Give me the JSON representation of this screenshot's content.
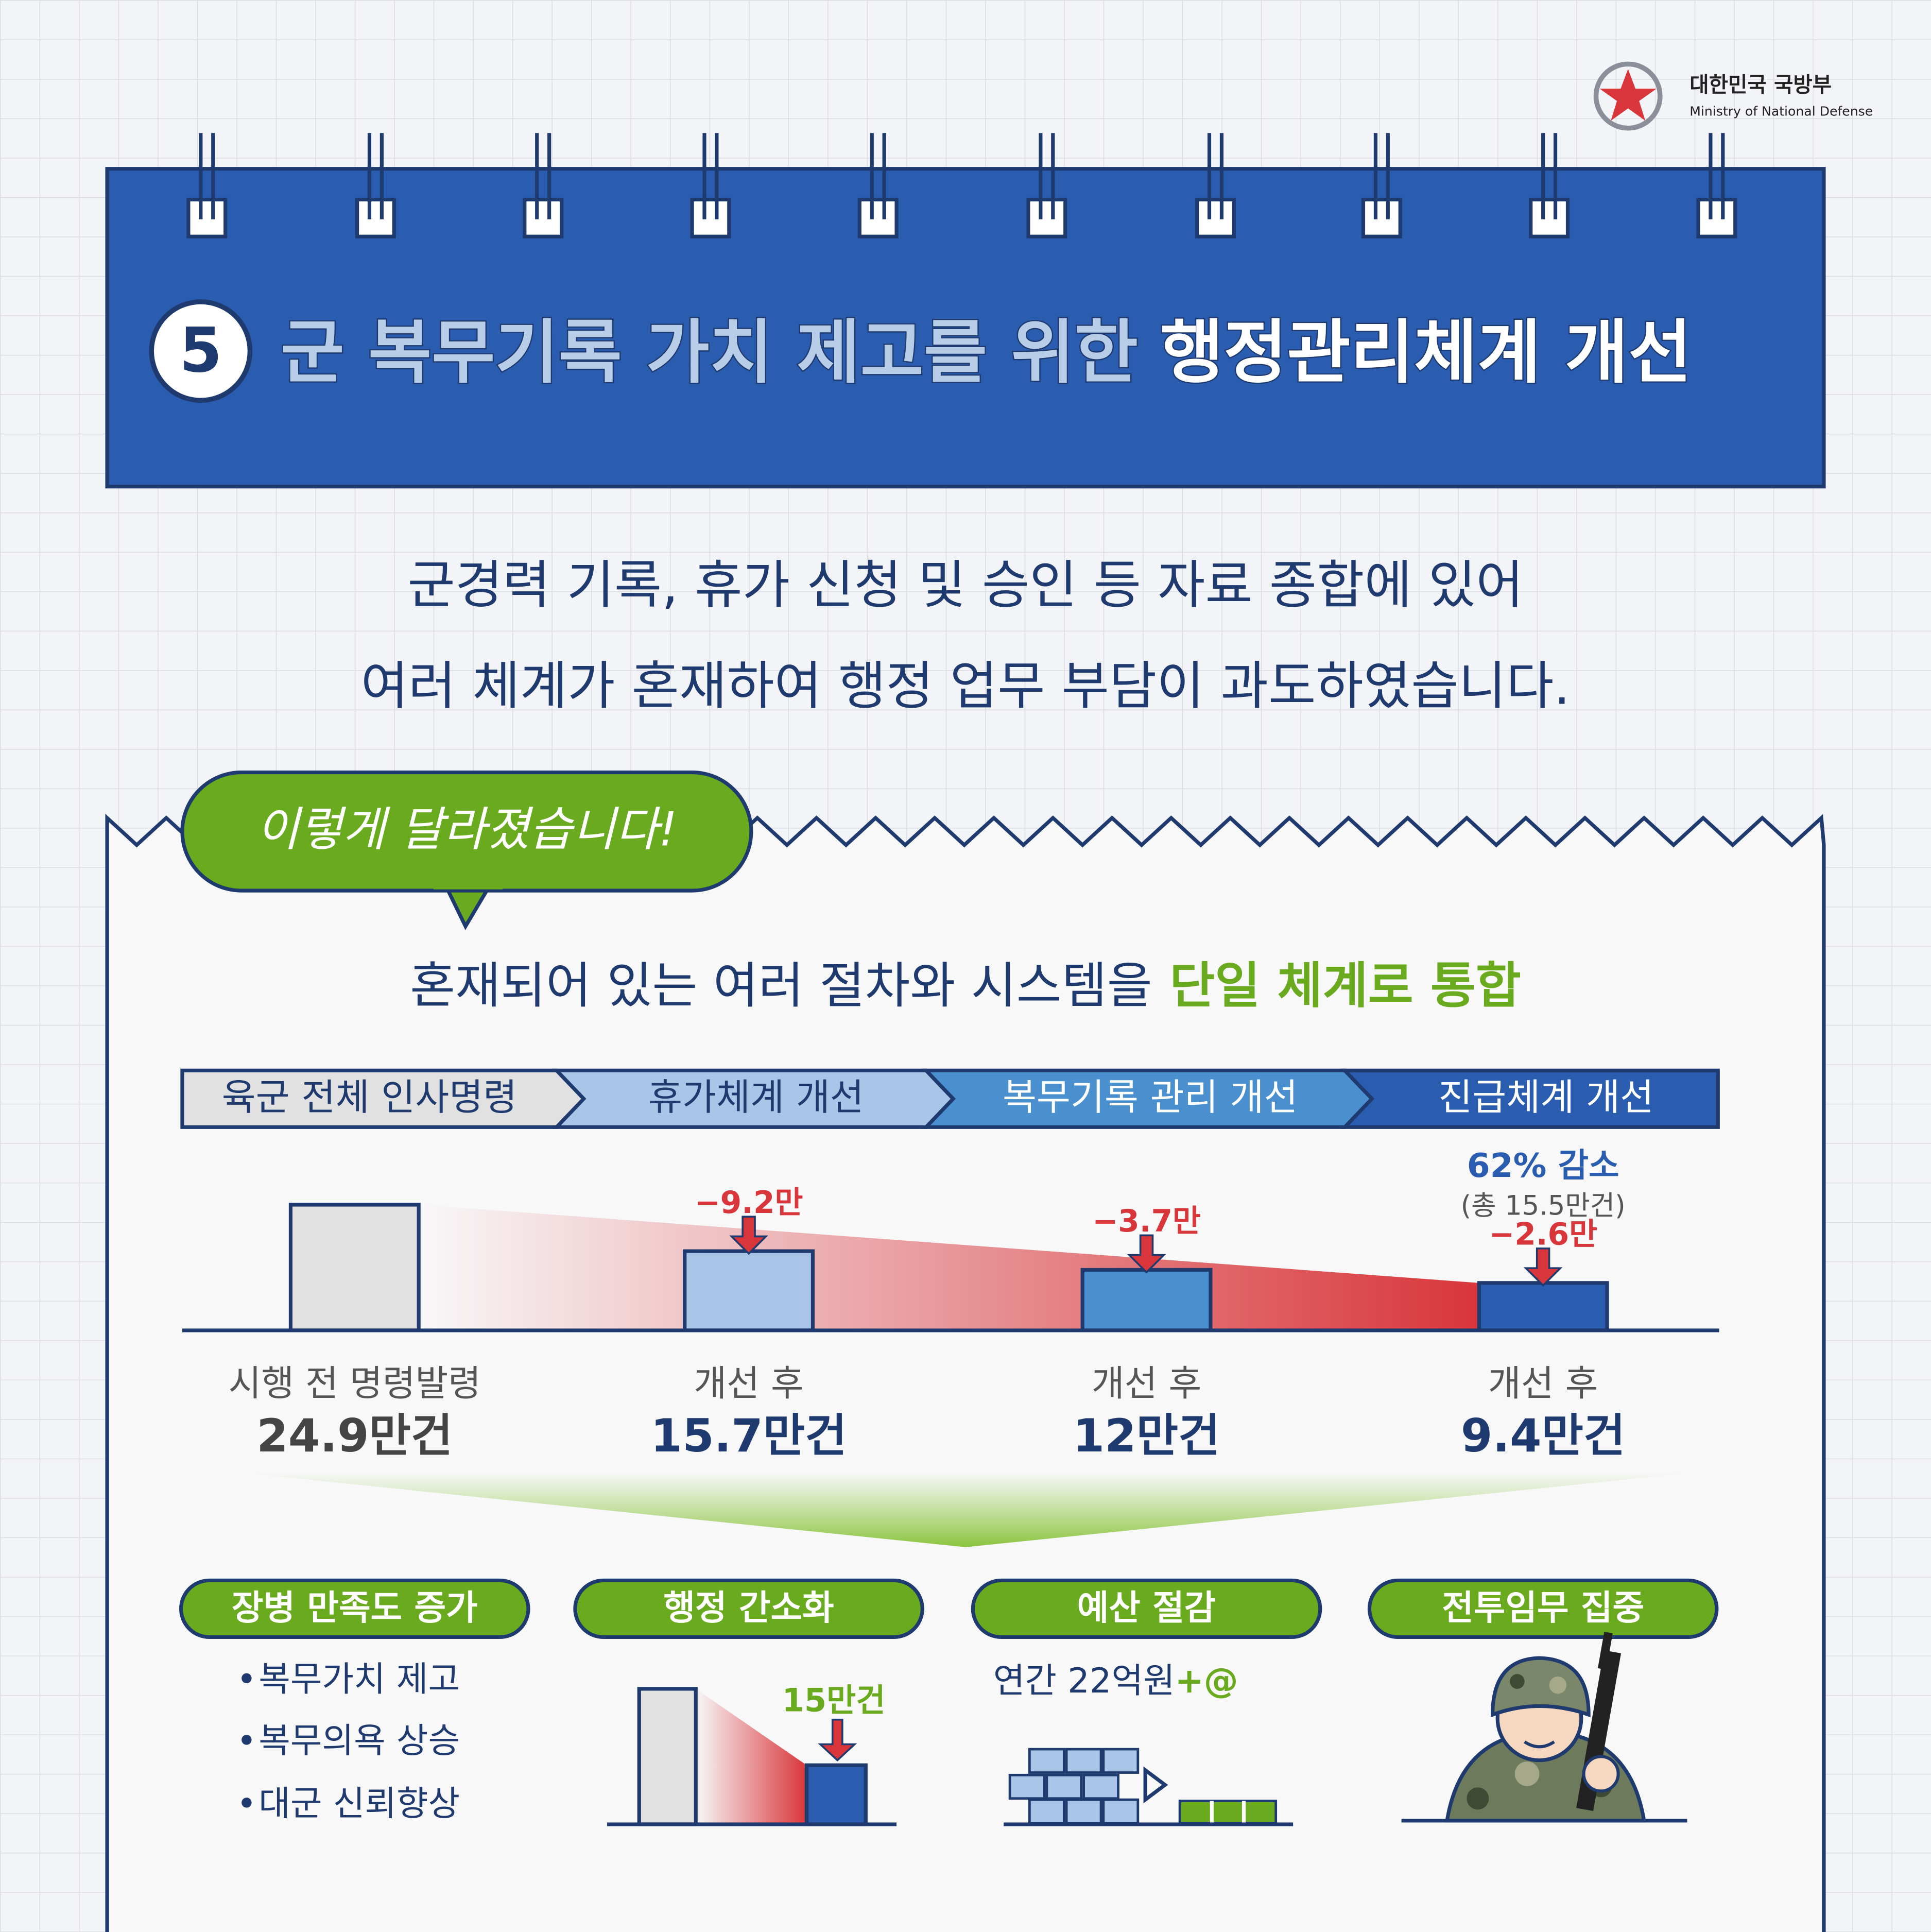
{
  "logo": {
    "name": "대한민국 국방부",
    "english": "Ministry of National Defense"
  },
  "header": {
    "number": "5",
    "title_light": "군 복무기록 가치 제고를 위한",
    "title_bold": "행정관리체계 개선"
  },
  "intro": [
    "군경력 기록, 휴가 신청 및 승인 등 자료 종합에 있어",
    "여러 체계가 혼재하여 행정 업무 부담이 과도하였습니다."
  ],
  "badge": "이렇게 달라졌습니다!",
  "headline": {
    "normal": "혼재되어 있는 여러 절차와 시스템을",
    "highlight": "단일 체계로 통합"
  },
  "steps": [
    "육군 전체 인사명령",
    "휴가체계 개선",
    "복무기록 관리 개선",
    "진급체계 개선"
  ],
  "chart_data": {
    "type": "bar",
    "categories": [
      "시행 전 명령발령",
      "개선 후",
      "개선 후",
      "개선 후"
    ],
    "values": [
      24.9,
      15.7,
      12,
      9.4
    ],
    "value_labels": [
      "24.9만건",
      "15.7만건",
      "12만건",
      "9.4만건"
    ],
    "colors": [
      "#e1e1e1",
      "#a9c6e8",
      "#4a90cf",
      "#2a5db0"
    ],
    "changes": {
      "values": [
        -9.2,
        -3.7,
        -2.6
      ],
      "value_labels": [
        "−9.2만",
        "−3.7만",
        "−2.6만"
      ]
    },
    "summary": {
      "title": "62% 감소",
      "note": "(총 15.5만건)"
    }
  },
  "effects": [
    {
      "title": "장병 만족도 증가",
      "items": [
        "복무가치 제고",
        "복무의욕 상승",
        "대군 신뢰향상"
      ]
    },
    {
      "title": "행정 간소화",
      "label": "15만건"
    },
    {
      "title": "예산 절감",
      "text": "연간 22억원",
      "plus": "+@"
    },
    {
      "title": "전투임무 집중"
    }
  ]
}
